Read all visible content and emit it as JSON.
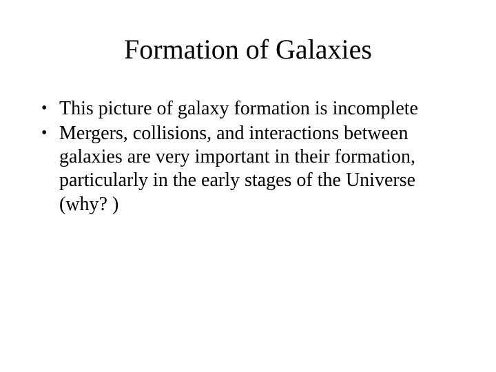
{
  "slide": {
    "title": "Formation of Galaxies",
    "bullets": [
      "This picture of galaxy formation is incomplete",
      "Mergers, collisions, and interactions between galaxies are very important in their formation, particularly in the early stages of the Universe (why? )"
    ],
    "colors": {
      "background": "#ffffff",
      "text": "#000000"
    },
    "typography": {
      "title_fontsize": 40,
      "body_fontsize": 28,
      "font_family": "Times New Roman"
    }
  }
}
